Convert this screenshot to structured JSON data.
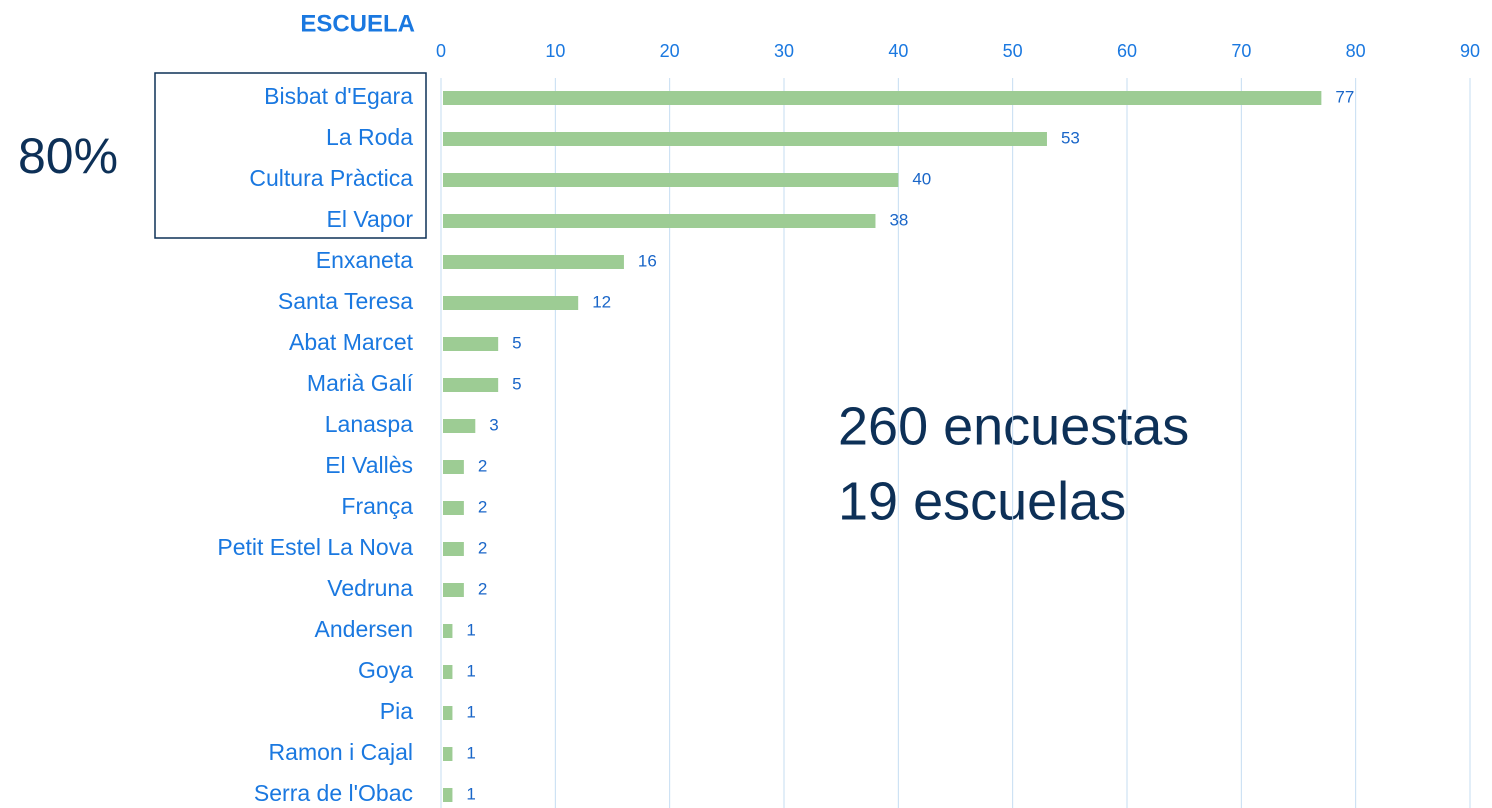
{
  "chart_data": {
    "type": "bar",
    "orientation": "horizontal",
    "title": "ESCUELA",
    "categories": [
      "Bisbat d'Egara",
      "La Roda",
      "Cultura Pràctica",
      "El Vapor",
      "Enxaneta",
      "Santa Teresa",
      "Abat Marcet",
      "Marià Galí",
      "Lanaspa",
      "El Vallès",
      "França",
      "Petit Estel La Nova",
      "Vedruna",
      "Andersen",
      "Goya",
      "Pia",
      "Ramon i Cajal",
      "Serra de l'Obac"
    ],
    "values": [
      77,
      53,
      40,
      38,
      16,
      12,
      5,
      5,
      3,
      2,
      2,
      2,
      2,
      1,
      1,
      1,
      1,
      1
    ],
    "color": "#9dcc94",
    "xlim": [
      0,
      90
    ],
    "xticks": [
      0,
      10,
      20,
      30,
      40,
      50,
      60,
      70,
      80,
      90
    ],
    "grid": true,
    "annotations": [
      "80%",
      "260 encuestas",
      "19 escuelas"
    ]
  }
}
